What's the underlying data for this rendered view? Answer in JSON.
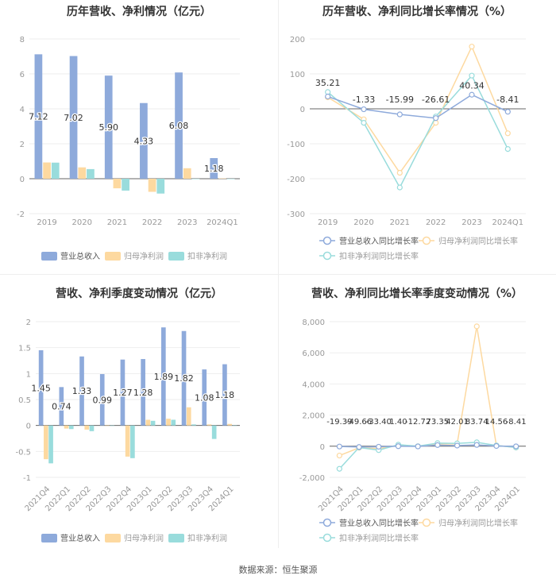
{
  "colors": {
    "revenue": "#8eaadb",
    "net": "#fdd9a0",
    "deduct": "#99dcdc",
    "axis": "#999",
    "grid": "#eee"
  },
  "footer": "数据来源：恒生聚源",
  "chart_data": [
    {
      "type": "bar",
      "title": "历年营收、净利情况（亿元）",
      "categories": [
        "2019",
        "2020",
        "2021",
        "2022",
        "2023",
        "2024Q1"
      ],
      "ylim": [
        -2,
        8
      ],
      "yticks": [
        "-2",
        "0",
        "2",
        "4",
        "6",
        "8"
      ],
      "grid": true,
      "legend": "bottom",
      "series": [
        {
          "name": "营业总收入",
          "values": [
            7.12,
            7.02,
            5.9,
            4.33,
            6.08,
            1.18
          ],
          "labels": [
            "7.12",
            "7.02",
            "5.90",
            "4.33",
            "6.08",
            "1.18"
          ]
        },
        {
          "name": "归母净利润",
          "values": [
            0.93,
            0.65,
            -0.55,
            -0.75,
            0.6,
            0.02
          ]
        },
        {
          "name": "扣非净利润",
          "values": [
            0.92,
            0.55,
            -0.68,
            -0.85,
            0.0,
            0.0
          ]
        }
      ]
    },
    {
      "type": "line",
      "title": "历年营收、净利同比增长率情况（%）",
      "categories": [
        "2019",
        "2020",
        "2021",
        "2022",
        "2023",
        "2024Q1"
      ],
      "ylim": [
        -300,
        200
      ],
      "yticks": [
        "-300",
        "-200",
        "-100",
        "0",
        "100",
        "200"
      ],
      "grid": true,
      "legend": "bottom",
      "series": [
        {
          "name": "营业总收入同比增长率",
          "values": [
            35.21,
            -1.33,
            -15.99,
            -26.61,
            40.34,
            -8.41
          ],
          "labels": [
            "35.21",
            "-1.33",
            "-15.99",
            "-26.61",
            "40.34",
            "-8.41"
          ]
        },
        {
          "name": "归母净利润同比增长率",
          "values": [
            33,
            -30,
            -183,
            -40,
            178,
            -70
          ]
        },
        {
          "name": "扣非净利润同比增长率",
          "values": [
            48,
            -40,
            -225,
            -22,
            95,
            -115
          ]
        }
      ]
    },
    {
      "type": "bar",
      "title": "营收、净利季度变动情况（亿元）",
      "categories": [
        "2021Q4",
        "2022Q1",
        "2022Q2",
        "2022Q3",
        "2022Q4",
        "2023Q1",
        "2023Q2",
        "2023Q3",
        "2023Q4",
        "2024Q1"
      ],
      "ylim": [
        -1,
        2
      ],
      "yticks": [
        "-1",
        "-0.5",
        "0",
        "0.5",
        "1",
        "1.5",
        "2"
      ],
      "grid": true,
      "legend": "bottom",
      "series": [
        {
          "name": "营业总收入",
          "values": [
            1.45,
            0.74,
            1.33,
            0.99,
            1.27,
            1.28,
            1.89,
            1.82,
            1.08,
            1.18
          ],
          "labels": [
            "1.45",
            "0.74",
            "1.33",
            "0.99",
            "1.27",
            "1.28",
            "1.89",
            "1.82",
            "1.08",
            "1.18"
          ]
        },
        {
          "name": "归母净利润",
          "values": [
            -0.65,
            -0.06,
            -0.08,
            0,
            -0.6,
            0.11,
            0.13,
            0.35,
            0.02,
            0.03
          ]
        },
        {
          "name": "扣非净利润",
          "values": [
            -0.73,
            -0.07,
            -0.11,
            0,
            -0.63,
            0.09,
            0.11,
            0.02,
            -0.26,
            0.0
          ]
        }
      ]
    },
    {
      "type": "line",
      "title": "营收、净利同比增长率季度变动情况（%）",
      "categories": [
        "2021Q4",
        "2022Q1",
        "2022Q2",
        "2022Q3",
        "2022Q4",
        "2023Q1",
        "2023Q2",
        "2023Q3",
        "2023Q4",
        "2024Q1"
      ],
      "ylim": [
        -2000,
        8000
      ],
      "yticks": [
        "-2,000",
        "0",
        "2,000",
        "4,000",
        "6,000",
        "8,000"
      ],
      "grid": true,
      "legend": "bottom",
      "series": [
        {
          "name": "营业总收入同比增长率",
          "values": [
            -19.39,
            -49.66,
            -33.4,
            1.4,
            -12.72,
            73.35,
            42.01,
            83.74,
            14.56,
            -8.41
          ],
          "labels": [
            "-19.39",
            "-49.66",
            "-33.40",
            "1.40",
            "-12.72",
            "73.35",
            "42.01",
            "83.74",
            "14.56",
            "-8.41"
          ]
        },
        {
          "name": "归母净利润同比增长率",
          "values": [
            -600,
            -100,
            -150,
            50,
            0,
            150,
            150,
            7700,
            50,
            -80
          ]
        },
        {
          "name": "扣非净利润同比增长率",
          "values": [
            -1450,
            -80,
            -250,
            100,
            0,
            200,
            180,
            250,
            50,
            -80
          ]
        }
      ]
    }
  ]
}
